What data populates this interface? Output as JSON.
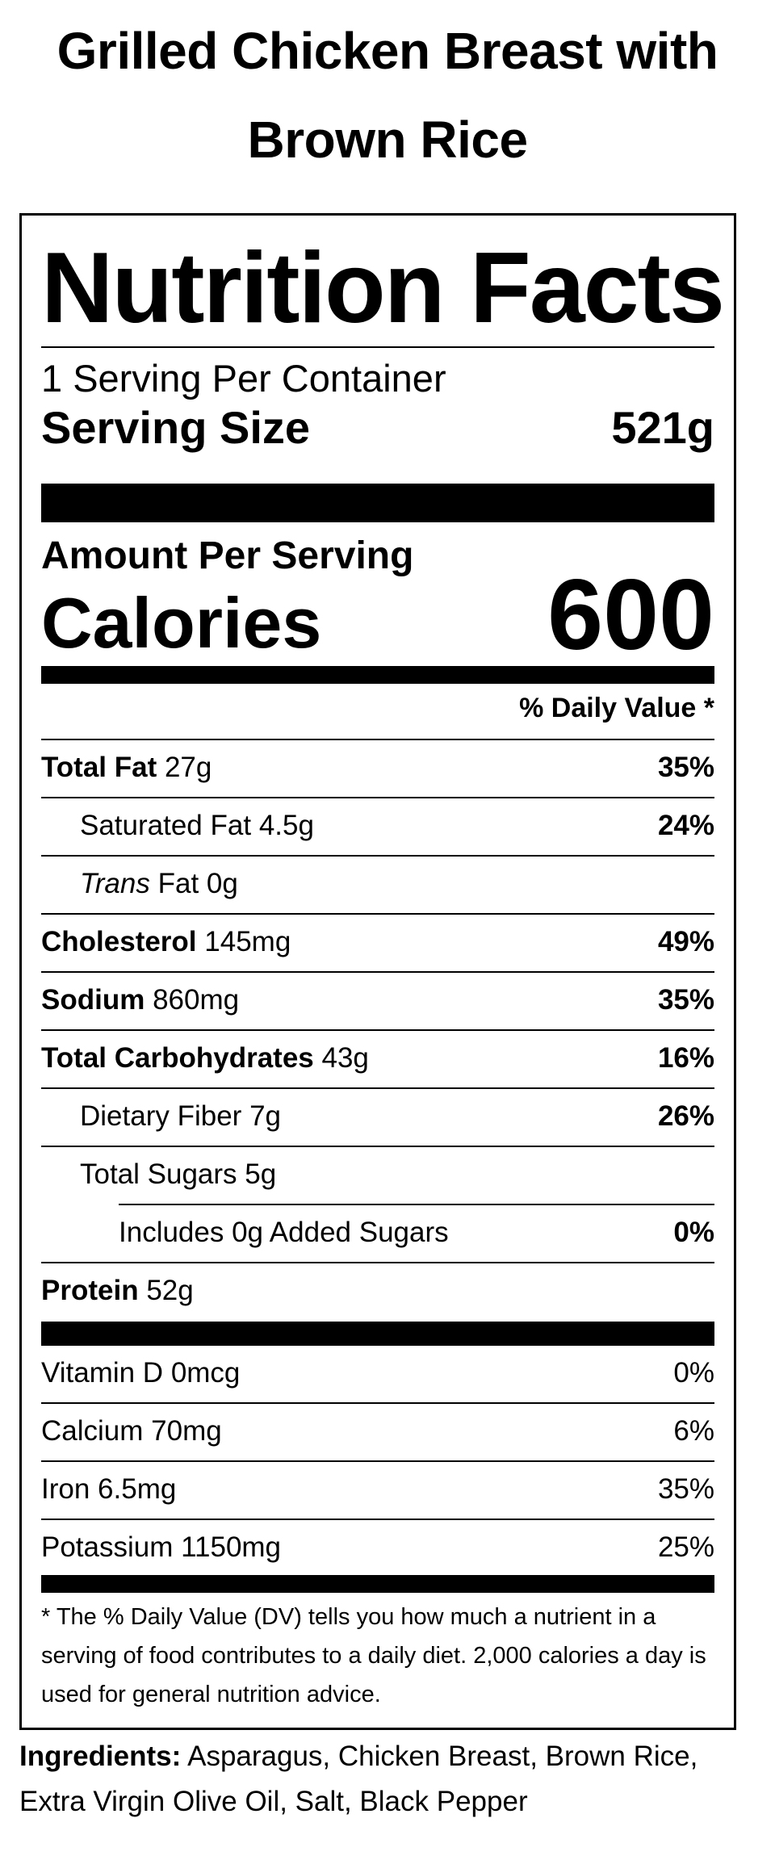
{
  "product": {
    "title": "Grilled Chicken Breast with Brown Rice"
  },
  "label": {
    "heading": "Nutrition Facts",
    "servings": "1 Serving Per Container",
    "serving_size_label": "Serving Size",
    "serving_size_value": "521g",
    "amount_per_serving": "Amount Per Serving",
    "calories_label": "Calories",
    "calories_value": "600",
    "dv_header": "% Daily Value *",
    "nutrients": [
      {
        "name": "Total Fat",
        "amount": "27g",
        "dv": "35%"
      },
      {
        "name": "Saturated Fat",
        "amount": "4.5g",
        "dv": "24%"
      },
      {
        "name_italic": "Trans",
        "name": "Fat",
        "amount": "0g",
        "dv": ""
      },
      {
        "name": "Cholesterol",
        "amount": "145mg",
        "dv": "49%"
      },
      {
        "name": "Sodium",
        "amount": "860mg",
        "dv": "35%"
      },
      {
        "name": "Total Carbohydrates",
        "amount": "43g",
        "dv": "16%"
      },
      {
        "name": "Dietary Fiber",
        "amount": "7g",
        "dv": "26%"
      },
      {
        "name": "Total Sugars",
        "amount": "5g",
        "dv": ""
      },
      {
        "name": "Includes 0g Added Sugars",
        "amount": "",
        "dv": "0%"
      },
      {
        "name": "Protein",
        "amount": "52g",
        "dv": ""
      }
    ],
    "vitamins": [
      {
        "name": "Vitamin D",
        "amount": "0mcg",
        "dv": "0%"
      },
      {
        "name": "Calcium",
        "amount": "70mg",
        "dv": "6%"
      },
      {
        "name": "Iron",
        "amount": "6.5mg",
        "dv": "35%"
      },
      {
        "name": "Potassium",
        "amount": "1150mg",
        "dv": "25%"
      }
    ],
    "footnote": "* The % Daily Value (DV) tells you how much a nutrient in a serving of food contributes to a daily diet. 2,000 calories a day is used for general nutrition advice."
  },
  "ingredients": {
    "label": "Ingredients:",
    "text": "Asparagus, Chicken Breast, Brown Rice, Extra Virgin Olive Oil, Salt, Black Pepper"
  }
}
